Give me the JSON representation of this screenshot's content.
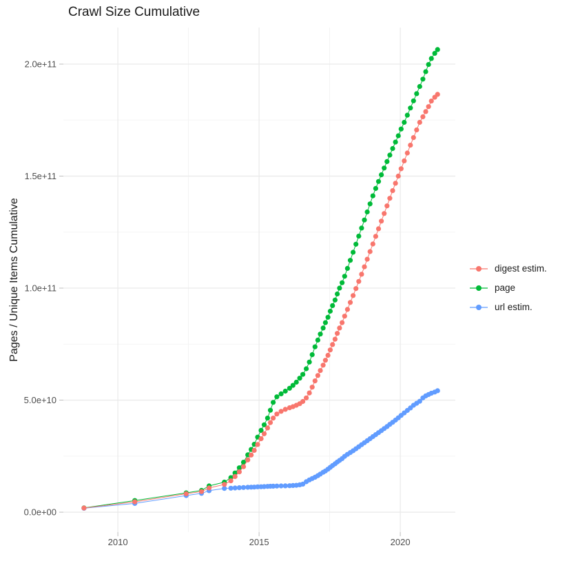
{
  "title": "Crawl Size Cumulative",
  "legend": [
    {
      "label": "digest estim.",
      "color": "#F8766D"
    },
    {
      "label": "page",
      "color": "#00BA38"
    },
    {
      "label": "url estim.",
      "color": "#619CFF"
    }
  ],
  "colors": {
    "grid_major": "#e9e9e9",
    "grid_minor": "#f3f3f3",
    "tick_mark": "#bdbdbd",
    "tick_text": "#4d4d4d",
    "background": "#ffffff"
  },
  "chart_data": {
    "type": "line",
    "title": "Crawl Size Cumulative",
    "xlabel": "",
    "ylabel": "Pages / Unique Items Cumulative",
    "note": "all series values are in units of 1e9 (billions); y tick labels shown in scientific notation",
    "xlim": [
      2008.07,
      2021.95
    ],
    "ylim_e9": [
      -8.9,
      216.3
    ],
    "x_axis": {
      "major": [
        2010,
        2015,
        2020
      ],
      "labels": [
        "2010",
        "2015",
        "2020"
      ],
      "minor": [
        2012.5,
        2017.5
      ]
    },
    "y_axis": {
      "major_e9": [
        0,
        50,
        100,
        150,
        200
      ],
      "labels": [
        "0.0e+00",
        "5.0e+10",
        "1.0e+11",
        "1.5e+11",
        "2.0e+11"
      ],
      "minor_e9": [
        25,
        75,
        125,
        175
      ]
    },
    "grid": "major and minor gridlines, light gray on white",
    "legend_position": "right middle",
    "x": [
      2008.8,
      2010.6,
      2012.42,
      2012.96,
      2013.23,
      2013.77,
      2014.0,
      2014.15,
      2014.3,
      2014.45,
      2014.6,
      2014.72,
      2014.83,
      2014.95,
      2015.07,
      2015.18,
      2015.3,
      2015.4,
      2015.5,
      2015.63,
      2015.78,
      2015.93,
      2016.08,
      2016.2,
      2016.32,
      2016.44,
      2016.55,
      2016.67,
      2016.78,
      2016.88,
      2016.98,
      2017.08,
      2017.17,
      2017.27,
      2017.35,
      2017.44,
      2017.52,
      2017.6,
      2017.69,
      2017.77,
      2017.85,
      2017.94,
      2018.03,
      2018.13,
      2018.23,
      2018.33,
      2018.43,
      2018.53,
      2018.63,
      2018.73,
      2018.83,
      2018.93,
      2019.03,
      2019.13,
      2019.23,
      2019.33,
      2019.43,
      2019.53,
      2019.63,
      2019.73,
      2019.83,
      2019.93,
      2020.03,
      2020.14,
      2020.25,
      2020.36,
      2020.47,
      2020.58,
      2020.69,
      2020.8,
      2020.9,
      2021.0,
      2021.1,
      2021.22,
      2021.32
    ],
    "series": [
      {
        "name": "digest estim.",
        "color": "#F8766D",
        "values": [
          1.85,
          4.6,
          8.2,
          9.2,
          10.8,
          12.4,
          14.0,
          15.9,
          18.0,
          20.3,
          23.3,
          25.5,
          27.6,
          30.2,
          32.8,
          35.0,
          37.6,
          40.0,
          42.0,
          43.8,
          45.0,
          45.9,
          46.6,
          47.1,
          47.7,
          48.4,
          49.4,
          51.0,
          53.2,
          55.8,
          58.6,
          61.0,
          63.2,
          65.6,
          67.8,
          70.0,
          72.4,
          74.8,
          77.2,
          79.8,
          82.2,
          84.6,
          87.5,
          90.5,
          93.6,
          96.7,
          99.8,
          103.0,
          106.2,
          109.5,
          112.9,
          116.3,
          119.7,
          123.1,
          126.5,
          129.9,
          133.3,
          136.7,
          140.1,
          143.5,
          146.8,
          150.0,
          153.3,
          156.8,
          160.3,
          163.8,
          167.2,
          170.6,
          174.0,
          176.5,
          178.8,
          181.0,
          183.5,
          185.2,
          186.5
        ]
      },
      {
        "name": "page",
        "color": "#00BA38",
        "values": [
          1.9,
          5.2,
          8.6,
          9.7,
          11.7,
          13.4,
          15.4,
          17.5,
          19.8,
          22.3,
          25.6,
          28.0,
          30.3,
          33.5,
          36.5,
          39.0,
          42.0,
          45.5,
          49.0,
          51.5,
          52.8,
          54.0,
          55.3,
          56.6,
          58.0,
          59.8,
          61.5,
          64.0,
          67.0,
          70.3,
          73.8,
          76.8,
          79.5,
          82.2,
          84.6,
          87.0,
          89.7,
          92.2,
          94.7,
          97.4,
          100.0,
          102.4,
          105.3,
          108.8,
          112.4,
          116.0,
          119.6,
          123.2,
          126.8,
          130.4,
          134.0,
          137.6,
          141.2,
          144.5,
          147.6,
          150.6,
          153.6,
          156.5,
          159.4,
          162.3,
          165.2,
          168.0,
          171.0,
          174.0,
          177.2,
          180.4,
          183.6,
          186.8,
          190.0,
          193.3,
          196.6,
          199.8,
          202.5,
          204.8,
          206.5
        ]
      },
      {
        "name": "url estim.",
        "color": "#619CFF",
        "values": [
          1.75,
          3.9,
          7.4,
          8.4,
          9.6,
          10.6,
          10.7,
          10.8,
          10.9,
          11.0,
          11.1,
          11.15,
          11.2,
          11.3,
          11.35,
          11.4,
          11.5,
          11.55,
          11.6,
          11.65,
          11.7,
          11.75,
          11.8,
          11.9,
          12.0,
          12.2,
          12.5,
          13.6,
          14.4,
          15.0,
          15.6,
          16.3,
          17.0,
          17.8,
          18.4,
          19.2,
          20.0,
          20.8,
          21.6,
          22.4,
          23.1,
          23.9,
          24.9,
          25.8,
          26.6,
          27.4,
          28.3,
          29.2,
          30.1,
          31.0,
          31.9,
          32.8,
          33.7,
          34.6,
          35.5,
          36.4,
          37.3,
          38.2,
          39.2,
          40.1,
          41.1,
          42.1,
          43.2,
          44.3,
          45.4,
          46.5,
          47.7,
          48.6,
          49.5,
          51.0,
          51.9,
          52.5,
          53.1,
          53.6,
          54.2
        ]
      }
    ],
    "draw_order": [
      "page",
      "url estim.",
      "digest estim."
    ]
  }
}
